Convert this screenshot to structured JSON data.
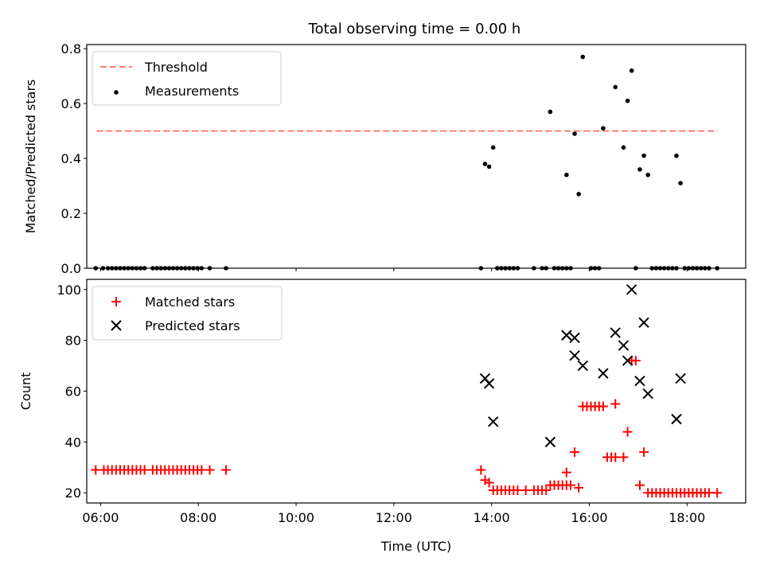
{
  "title": "Total observing time = 0.00 h",
  "chart_data": [
    {
      "type": "scatter",
      "ylabel": "Matched/Predicted stars",
      "xlabel": "",
      "xlim": [
        "05:43",
        "19:12"
      ],
      "ylim": [
        0,
        0.815
      ],
      "yticks": [
        "0.0",
        "0.2",
        "0.4",
        "0.6",
        "0.8"
      ],
      "threshold": {
        "name": "Threshold",
        "value": 0.5,
        "x": [
          "05:55",
          "18:38"
        ],
        "color": "#ff7b7b"
      },
      "legend": [
        "Threshold",
        "Measurements"
      ],
      "legend_position": "upper left",
      "grid": false,
      "series": [
        {
          "name": "Measurements",
          "color": "#000000",
          "points": [
            [
              "05:54",
              0
            ],
            [
              "06:03",
              0
            ],
            [
              "06:09",
              0
            ],
            [
              "06:14",
              0
            ],
            [
              "06:19",
              0
            ],
            [
              "06:24",
              0
            ],
            [
              "06:29",
              0
            ],
            [
              "06:34",
              0
            ],
            [
              "06:39",
              0
            ],
            [
              "06:44",
              0
            ],
            [
              "06:49",
              0
            ],
            [
              "06:54",
              0
            ],
            [
              "07:04",
              0
            ],
            [
              "07:09",
              0
            ],
            [
              "07:14",
              0
            ],
            [
              "07:19",
              0
            ],
            [
              "07:24",
              0
            ],
            [
              "07:29",
              0
            ],
            [
              "07:34",
              0
            ],
            [
              "07:39",
              0
            ],
            [
              "07:44",
              0
            ],
            [
              "07:49",
              0
            ],
            [
              "07:54",
              0
            ],
            [
              "07:59",
              0
            ],
            [
              "08:04",
              0
            ],
            [
              "08:14",
              0
            ],
            [
              "08:34",
              0
            ],
            [
              "13:47",
              0
            ],
            [
              "13:52",
              0.38
            ],
            [
              "13:57",
              0.37
            ],
            [
              "14:02",
              0.44
            ],
            [
              "14:07",
              0
            ],
            [
              "14:12",
              0
            ],
            [
              "14:17",
              0
            ],
            [
              "14:22",
              0
            ],
            [
              "14:27",
              0
            ],
            [
              "14:32",
              0
            ],
            [
              "14:52",
              0
            ],
            [
              "15:02",
              0
            ],
            [
              "15:07",
              0
            ],
            [
              "15:12",
              0.57
            ],
            [
              "15:17",
              0
            ],
            [
              "15:22",
              0
            ],
            [
              "15:27",
              0
            ],
            [
              "15:32",
              0
            ],
            [
              "15:37",
              0
            ],
            [
              "15:32",
              0.34
            ],
            [
              "15:42",
              0.49
            ],
            [
              "15:47",
              0.27
            ],
            [
              "15:52",
              0.77
            ],
            [
              "16:02",
              0
            ],
            [
              "16:07",
              0
            ],
            [
              "16:12",
              0
            ],
            [
              "16:17",
              0.51
            ],
            [
              "16:32",
              0.66
            ],
            [
              "16:42",
              0.44
            ],
            [
              "16:47",
              0.61
            ],
            [
              "16:52",
              0.72
            ],
            [
              "16:57",
              0
            ],
            [
              "17:02",
              0.36
            ],
            [
              "17:07",
              0.41
            ],
            [
              "17:12",
              0.34
            ],
            [
              "17:17",
              0
            ],
            [
              "17:22",
              0
            ],
            [
              "17:27",
              0
            ],
            [
              "17:32",
              0
            ],
            [
              "17:37",
              0
            ],
            [
              "17:42",
              0
            ],
            [
              "17:47",
              0
            ],
            [
              "17:47",
              0.41
            ],
            [
              "17:52",
              0.31
            ],
            [
              "17:57",
              0
            ],
            [
              "18:02",
              0
            ],
            [
              "18:07",
              0
            ],
            [
              "18:12",
              0
            ],
            [
              "18:17",
              0
            ],
            [
              "18:22",
              0
            ],
            [
              "18:27",
              0
            ],
            [
              "18:37",
              0
            ]
          ]
        }
      ]
    },
    {
      "type": "scatter",
      "ylabel": "Count",
      "xlabel": "Time (UTC)",
      "xlim": [
        "05:43",
        "19:12"
      ],
      "ylim": [
        16,
        104
      ],
      "xticks": [
        "06:00",
        "08:00",
        "10:00",
        "12:00",
        "14:00",
        "16:00",
        "18:00"
      ],
      "yticks": [
        "20",
        "40",
        "60",
        "80",
        "100"
      ],
      "legend": [
        "Matched stars",
        "Predicted stars"
      ],
      "legend_position": "upper left",
      "grid": false,
      "series": [
        {
          "name": "Matched stars",
          "marker": "plus",
          "color": "#ff0000",
          "points": [
            [
              "05:54",
              29
            ],
            [
              "06:04",
              29
            ],
            [
              "06:09",
              29
            ],
            [
              "06:14",
              29
            ],
            [
              "06:19",
              29
            ],
            [
              "06:24",
              29
            ],
            [
              "06:29",
              29
            ],
            [
              "06:34",
              29
            ],
            [
              "06:39",
              29
            ],
            [
              "06:44",
              29
            ],
            [
              "06:49",
              29
            ],
            [
              "06:54",
              29
            ],
            [
              "07:04",
              29
            ],
            [
              "07:09",
              29
            ],
            [
              "07:14",
              29
            ],
            [
              "07:19",
              29
            ],
            [
              "07:24",
              29
            ],
            [
              "07:29",
              29
            ],
            [
              "07:34",
              29
            ],
            [
              "07:39",
              29
            ],
            [
              "07:44",
              29
            ],
            [
              "07:49",
              29
            ],
            [
              "07:54",
              29
            ],
            [
              "07:59",
              29
            ],
            [
              "08:04",
              29
            ],
            [
              "08:14",
              29
            ],
            [
              "08:34",
              29
            ],
            [
              "13:47",
              29
            ],
            [
              "13:52",
              25
            ],
            [
              "13:57",
              24
            ],
            [
              "14:02",
              21
            ],
            [
              "14:07",
              21
            ],
            [
              "14:12",
              21
            ],
            [
              "14:17",
              21
            ],
            [
              "14:22",
              21
            ],
            [
              "14:27",
              21
            ],
            [
              "14:32",
              21
            ],
            [
              "14:42",
              21
            ],
            [
              "14:52",
              21
            ],
            [
              "14:57",
              21
            ],
            [
              "15:02",
              21
            ],
            [
              "15:07",
              21
            ],
            [
              "15:12",
              23
            ],
            [
              "15:17",
              23
            ],
            [
              "15:22",
              23
            ],
            [
              "15:27",
              23
            ],
            [
              "15:32",
              23
            ],
            [
              "15:37",
              23
            ],
            [
              "15:32",
              28
            ],
            [
              "15:42",
              36
            ],
            [
              "15:47",
              22
            ],
            [
              "15:52",
              54
            ],
            [
              "15:57",
              54
            ],
            [
              "16:02",
              54
            ],
            [
              "16:07",
              54
            ],
            [
              "16:12",
              54
            ],
            [
              "16:17",
              54
            ],
            [
              "16:22",
              34
            ],
            [
              "16:27",
              34
            ],
            [
              "16:32",
              34
            ],
            [
              "16:32",
              55
            ],
            [
              "16:42",
              34
            ],
            [
              "16:47",
              44
            ],
            [
              "16:52",
              72
            ],
            [
              "16:57",
              72
            ],
            [
              "17:02",
              23
            ],
            [
              "17:07",
              36
            ],
            [
              "17:12",
              20
            ],
            [
              "17:17",
              20
            ],
            [
              "17:22",
              20
            ],
            [
              "17:27",
              20
            ],
            [
              "17:32",
              20
            ],
            [
              "17:37",
              20
            ],
            [
              "17:42",
              20
            ],
            [
              "17:47",
              20
            ],
            [
              "17:52",
              20
            ],
            [
              "17:57",
              20
            ],
            [
              "18:02",
              20
            ],
            [
              "18:07",
              20
            ],
            [
              "18:12",
              20
            ],
            [
              "18:17",
              20
            ],
            [
              "18:22",
              20
            ],
            [
              "18:27",
              20
            ],
            [
              "18:37",
              20
            ]
          ]
        },
        {
          "name": "Predicted stars",
          "marker": "x",
          "color": "#000000",
          "points": [
            [
              "13:52",
              65
            ],
            [
              "13:57",
              63
            ],
            [
              "14:02",
              48
            ],
            [
              "15:12",
              40
            ],
            [
              "15:32",
              82
            ],
            [
              "15:42",
              74
            ],
            [
              "15:42",
              81
            ],
            [
              "15:52",
              70
            ],
            [
              "16:17",
              67
            ],
            [
              "16:32",
              83
            ],
            [
              "16:42",
              78
            ],
            [
              "16:47",
              72
            ],
            [
              "16:52",
              100
            ],
            [
              "17:02",
              64
            ],
            [
              "17:07",
              87
            ],
            [
              "17:12",
              59
            ],
            [
              "17:47",
              49
            ],
            [
              "17:52",
              65
            ]
          ]
        }
      ]
    }
  ]
}
